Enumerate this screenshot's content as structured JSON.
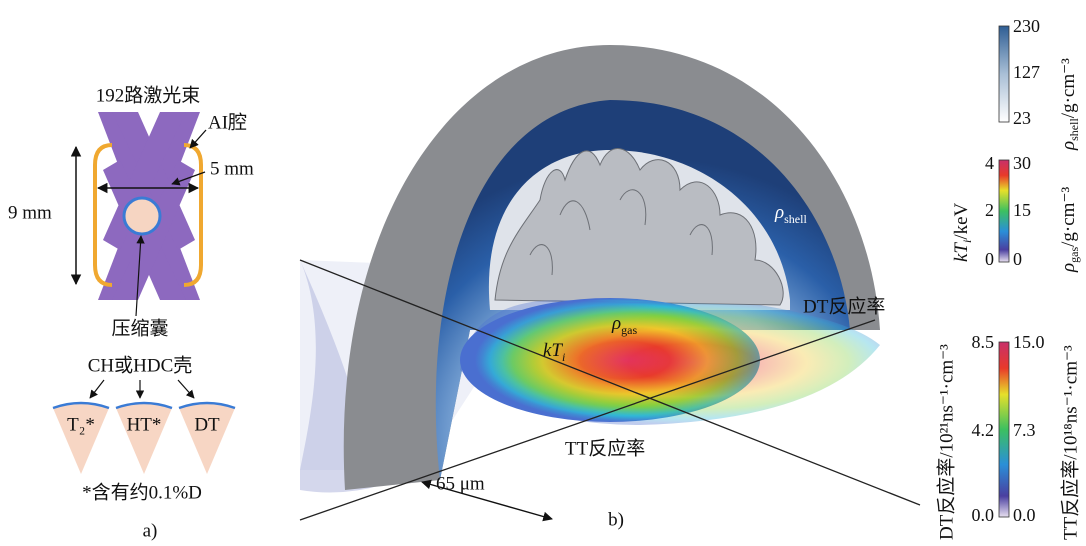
{
  "panel_a": {
    "beam_label": "192路激光束",
    "hohlraum_label": "AI腔",
    "width_label": "5 mm",
    "height_label": "9 mm",
    "capsule_label": "压缩囊",
    "shell_label": "CH或HDC壳",
    "fills": [
      "T₂*",
      "HT*",
      "DT"
    ],
    "note": "*含有约0.1%D",
    "panel_label": "a)"
  },
  "panel_b": {
    "shell_density": {
      "symbol": "ρ",
      "sub": "shell"
    },
    "gas_density": {
      "symbol": "ρ",
      "sub": "gas"
    },
    "ion_temperature": {
      "symbol": "kT",
      "sub": "i"
    },
    "dt_rate": "DT反应率",
    "tt_rate": "TT反应率",
    "scale": "65 μm",
    "panel_label": "b)"
  },
  "colorbars": [
    {
      "right_label": {
        "symbol": "ρ",
        "sub": "shell",
        "unit": "/g·cm⁻³"
      },
      "right_ticks": [
        "230",
        "127",
        "23"
      ]
    },
    {
      "left_label": {
        "symbol": "kT",
        "sub": "i",
        "unit": "/keV"
      },
      "left_ticks": [
        "4",
        "2",
        "0"
      ],
      "right_label": {
        "symbol": "ρ",
        "sub": "gas",
        "unit": "/g·cm⁻³"
      },
      "right_ticks": [
        "30",
        "15",
        "0"
      ]
    },
    {
      "left_label": "DT反应率/10²¹ns⁻¹·cm⁻³",
      "left_ticks": [
        "8.5",
        "4.2",
        "0.0"
      ],
      "right_label": "TT反应率/10¹⁸ns⁻¹·cm⁻³",
      "right_ticks": [
        "15.0",
        "7.3",
        "0.0"
      ]
    }
  ]
}
